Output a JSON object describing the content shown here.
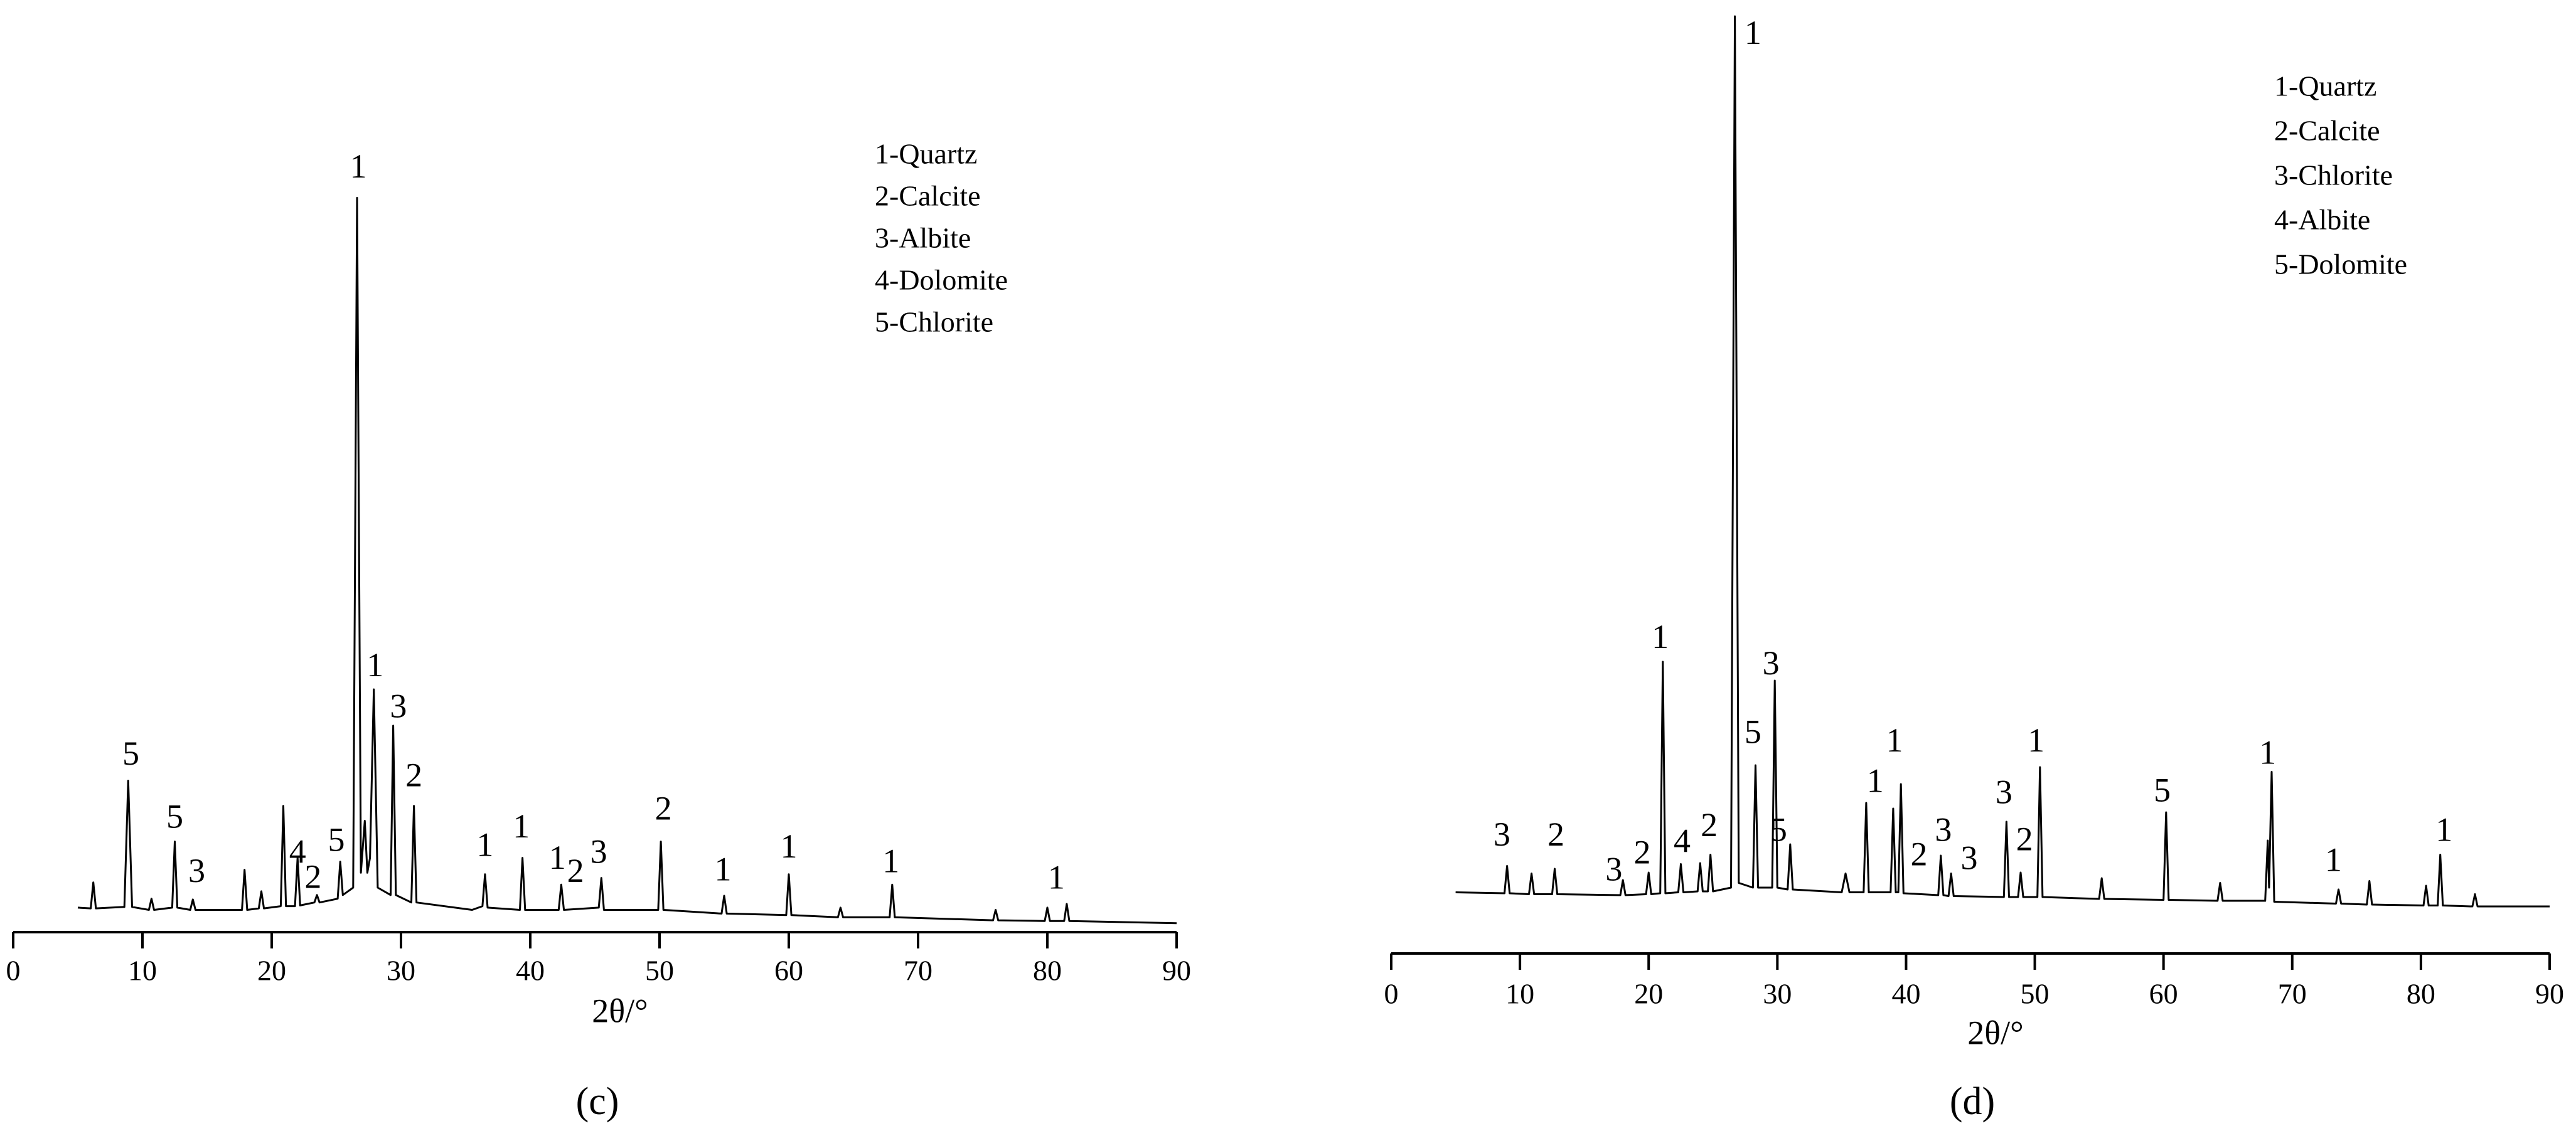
{
  "chart_data": [
    {
      "type": "line",
      "panel_label": "(c)",
      "xlabel": "2θ/°",
      "color": "#000000",
      "xlim": [
        0,
        90
      ],
      "xticks": [
        0,
        10,
        20,
        30,
        40,
        50,
        60,
        70,
        80,
        90
      ],
      "ylim": [
        0,
        110
      ],
      "legend": [
        "1-Quartz",
        "2-Calcite",
        "3-Albite",
        "4-Dolomite",
        "5-Chlorite"
      ],
      "x": [
        5,
        6,
        6.2,
        6.4,
        8.6,
        8.9,
        9.2,
        10.5,
        10.7,
        10.9,
        12.3,
        12.5,
        12.7,
        13.7,
        13.9,
        14.1,
        17.7,
        17.9,
        18.1,
        19,
        19.2,
        19.4,
        20.7,
        20.9,
        21.1,
        21.8,
        22,
        22.2,
        23.3,
        23.5,
        23.7,
        25.1,
        25.3,
        25.5,
        26.3,
        26.6,
        26.9,
        27.2,
        27.4,
        27.6,
        27.9,
        28.2,
        29.2,
        29.4,
        29.6,
        30.8,
        31,
        31.2,
        35.5,
        36.3,
        36.5,
        36.7,
        39.2,
        39.4,
        39.6,
        42.2,
        42.4,
        42.6,
        45.3,
        45.5,
        45.7,
        49.9,
        50.1,
        50.3,
        54.8,
        55,
        55.2,
        59.8,
        60,
        60.2,
        63.8,
        64,
        64.2,
        67.8,
        68,
        68.2,
        75.8,
        76,
        76.2,
        79.8,
        80,
        80.2,
        81.3,
        81.5,
        81.7,
        90
      ],
      "values": [
        3.3,
        3.2,
        6.7,
        3.2,
        3.4,
        20.4,
        3.4,
        3,
        4.5,
        3,
        3.3,
        12.2,
        3.3,
        3,
        4.4,
        3,
        3,
        8.4,
        3,
        3.2,
        5.5,
        3.2,
        3.5,
        17,
        3.5,
        3.5,
        10,
        3.6,
        4,
        5,
        4,
        4.5,
        9.5,
        5,
        6,
        98.9,
        8,
        15,
        8,
        10,
        32.7,
        6,
        5,
        27.8,
        5,
        4,
        17,
        4,
        3,
        3.5,
        7.8,
        3.3,
        3,
        10,
        3,
        3,
        6.4,
        3,
        3.3,
        7.3,
        3,
        3,
        12.2,
        3,
        2.5,
        4.9,
        2.5,
        2.3,
        7.8,
        2.3,
        2,
        3.3,
        2,
        2,
        6.4,
        2,
        1.6,
        3,
        1.6,
        1.5,
        3.3,
        1.5,
        1.5,
        3.8,
        1.5,
        1.2
      ],
      "annotations": [
        {
          "x": 9.1,
          "y": 23.6,
          "label": "5"
        },
        {
          "x": 12.5,
          "y": 15.1,
          "label": "5"
        },
        {
          "x": 14.2,
          "y": 7.8,
          "label": "3"
        },
        {
          "x": 22,
          "y": 10.4,
          "label": "4"
        },
        {
          "x": 23.2,
          "y": 7,
          "label": "2"
        },
        {
          "x": 25,
          "y": 12,
          "label": "5"
        },
        {
          "x": 26.7,
          "y": 102.7,
          "label": "1"
        },
        {
          "x": 28,
          "y": 35.5,
          "label": "1"
        },
        {
          "x": 29.8,
          "y": 30,
          "label": "3"
        },
        {
          "x": 31,
          "y": 20.7,
          "label": "2"
        },
        {
          "x": 36.5,
          "y": 11.3,
          "label": "1"
        },
        {
          "x": 39.3,
          "y": 13.8,
          "label": "1"
        },
        {
          "x": 42.1,
          "y": 9.6,
          "label": "1"
        },
        {
          "x": 43.5,
          "y": 7.8,
          "label": "2"
        },
        {
          "x": 45.3,
          "y": 10.4,
          "label": "3"
        },
        {
          "x": 50.3,
          "y": 16.2,
          "label": "2"
        },
        {
          "x": 54.9,
          "y": 8,
          "label": "1"
        },
        {
          "x": 60,
          "y": 11.1,
          "label": "1"
        },
        {
          "x": 67.9,
          "y": 9.1,
          "label": "1"
        },
        {
          "x": 80.7,
          "y": 6.9,
          "label": "1"
        }
      ]
    },
    {
      "type": "line",
      "panel_label": "(d)",
      "xlabel": "2θ/°",
      "color": "#000000",
      "xlim": [
        0,
        90
      ],
      "xticks": [
        0,
        10,
        20,
        30,
        40,
        50,
        60,
        70,
        80,
        90
      ],
      "ylim": [
        0,
        100
      ],
      "legend": [
        "1-Quartz",
        "2-Calcite",
        "3-Chlorite",
        "4-Albite",
        "5-Dolomite"
      ],
      "x": [
        5,
        8.8,
        9,
        9.2,
        10.7,
        10.9,
        11.1,
        12.5,
        12.7,
        12.9,
        17.8,
        18,
        18.2,
        19.8,
        20,
        20.2,
        20.9,
        21.1,
        21.3,
        22.3,
        22.5,
        22.7,
        23.8,
        24,
        24.2,
        24.6,
        24.8,
        25,
        26.4,
        26.7,
        27,
        28.1,
        28.3,
        28.5,
        29.6,
        29.8,
        30,
        30.8,
        31,
        31.2,
        35,
        35.3,
        35.6,
        36.7,
        36.9,
        37.1,
        38.8,
        39,
        39.2,
        39.4,
        39.6,
        39.8,
        42.5,
        42.7,
        42.9,
        43.3,
        43.5,
        43.7,
        47.6,
        47.8,
        48,
        48.7,
        48.9,
        49.1,
        50.2,
        50.4,
        50.6,
        55,
        55.2,
        55.4,
        60,
        60.2,
        60.4,
        64.2,
        64.4,
        64.6,
        67.9,
        68.1,
        68.2,
        68.4,
        68.6,
        73.4,
        73.6,
        73.8,
        75.8,
        76,
        76.2,
        80.2,
        80.4,
        80.6,
        81.3,
        81.5,
        81.7,
        84,
        84.2,
        84.4,
        90
      ],
      "values": [
        6.5,
        6.4,
        9.3,
        6.4,
        6.3,
        8.5,
        6.3,
        6.3,
        9,
        6.3,
        6.2,
        7.8,
        6.2,
        6.3,
        8.6,
        6.3,
        6.4,
        31,
        6.4,
        6.5,
        9.5,
        6.5,
        6.6,
        9.6,
        6.6,
        6.6,
        10.5,
        6.6,
        7,
        99.6,
        7.5,
        7,
        20,
        7,
        7,
        29,
        7,
        6.8,
        11.6,
        6.8,
        6.5,
        8.5,
        6.5,
        6.5,
        16,
        6.5,
        6.5,
        15.4,
        6.5,
        6.5,
        18,
        6.4,
        6.2,
        10.4,
        6.2,
        6.1,
        8.5,
        6.1,
        6,
        14,
        6,
        6,
        8.6,
        6,
        6,
        19.8,
        6,
        5.8,
        8,
        5.8,
        5.7,
        15,
        5.7,
        5.6,
        7.5,
        5.6,
        5.6,
        12,
        7,
        19.3,
        5.5,
        5.3,
        6.8,
        5.3,
        5.2,
        7.7,
        5.2,
        5.1,
        7.2,
        5.1,
        5.1,
        10.5,
        5.1,
        5,
        6.3,
        5,
        5
      ],
      "annotations": [
        {
          "x": 8.6,
          "y": 12.3,
          "label": "3"
        },
        {
          "x": 12.8,
          "y": 12.3,
          "label": "2"
        },
        {
          "x": 17.3,
          "y": 8.6,
          "label": "3"
        },
        {
          "x": 19.5,
          "y": 10.4,
          "label": "2"
        },
        {
          "x": 22.6,
          "y": 11.6,
          "label": "4"
        },
        {
          "x": 24.7,
          "y": 13.3,
          "label": "2"
        },
        {
          "x": 20.9,
          "y": 33.3,
          "label": "1"
        },
        {
          "x": 28.1,
          "y": 97.5,
          "label": "1"
        },
        {
          "x": 28.1,
          "y": 23.2,
          "label": "5"
        },
        {
          "x": 29.5,
          "y": 30.5,
          "label": "3"
        },
        {
          "x": 30.1,
          "y": 12.8,
          "label": "5"
        },
        {
          "x": 37.6,
          "y": 18,
          "label": "1"
        },
        {
          "x": 39.1,
          "y": 22.3,
          "label": "1"
        },
        {
          "x": 41,
          "y": 10.2,
          "label": "2"
        },
        {
          "x": 42.9,
          "y": 12.8,
          "label": "3"
        },
        {
          "x": 44.9,
          "y": 9.8,
          "label": "3"
        },
        {
          "x": 47.6,
          "y": 16.8,
          "label": "3"
        },
        {
          "x": 49.2,
          "y": 11.8,
          "label": "2"
        },
        {
          "x": 50.1,
          "y": 22.3,
          "label": "1"
        },
        {
          "x": 59.9,
          "y": 17,
          "label": "5"
        },
        {
          "x": 68.1,
          "y": 21,
          "label": "1"
        },
        {
          "x": 73.2,
          "y": 9.6,
          "label": "1"
        },
        {
          "x": 81.8,
          "y": 12.8,
          "label": "1"
        }
      ]
    }
  ]
}
